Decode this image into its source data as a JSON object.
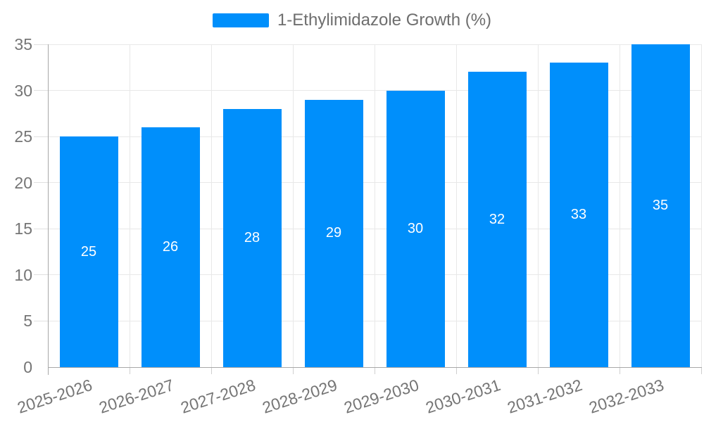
{
  "colors": {
    "accent": "#008FFB",
    "axis_label": "#757575",
    "legend_text": "#6e6e6e",
    "grid_line": "#e8e8e8",
    "axis_line": "#a8a8a8",
    "ytick_line": "#e0e0e0",
    "xtick_line": "#cfcfcf",
    "data_label": "#ffffff",
    "background": "#ffffff"
  },
  "chart_data": {
    "type": "bar",
    "title": "",
    "xlabel": "",
    "ylabel": "",
    "categories": [
      "2025-2026",
      "2026-2027",
      "2027-2028",
      "2028-2029",
      "2029-2030",
      "2030-2031",
      "2031-2032",
      "2032-2033"
    ],
    "series": [
      {
        "name": "1-Ethylimidazole Growth (%)",
        "values": [
          25,
          26,
          28,
          29,
          30,
          32,
          33,
          35
        ],
        "color": "#008FFB"
      }
    ],
    "data_labels": {
      "show": true,
      "position": "bar-center",
      "color": "#ffffff",
      "values": [
        "25",
        "26",
        "28",
        "29",
        "30",
        "32",
        "33",
        "35"
      ]
    },
    "ylim": [
      0,
      35
    ],
    "yticks": [
      0,
      5,
      10,
      15,
      20,
      25,
      30,
      35
    ],
    "grid": true,
    "grid_vertical": true,
    "legend_position": "top-center",
    "x_label_rotation_deg": -18
  }
}
